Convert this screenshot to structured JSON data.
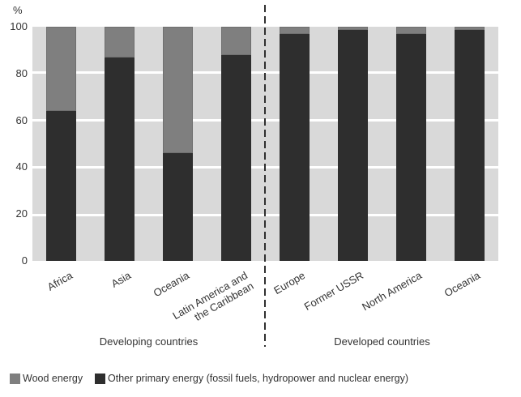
{
  "chart_data": {
    "type": "bar",
    "variant": "stacked-column-percent",
    "title": "",
    "ylabel": "%",
    "xlabel": "",
    "ylim": [
      0,
      100
    ],
    "yticks": [
      0,
      20,
      40,
      60,
      80,
      100
    ],
    "grid": "horizontal-white-on-gray-bands",
    "legend_position": "bottom",
    "groups": [
      {
        "label": "Developing countries",
        "categories": [
          "Africa",
          "Asia",
          "Oceania",
          "Latin America and\nthe Caribbean"
        ],
        "series": [
          {
            "name": "Wood energy",
            "values": [
              36,
              13,
              54,
              12
            ]
          },
          {
            "name": "Other primary energy (fossil fuels, hydropower and nuclear energy)",
            "values": [
              64,
              87,
              46,
              88
            ]
          }
        ]
      },
      {
        "label": "Developed countries",
        "categories": [
          "Europe",
          "Former USSR",
          "North America",
          "Oceania"
        ],
        "series": [
          {
            "name": "Wood energy",
            "values": [
              3,
              1.5,
              3,
              1.5
            ]
          },
          {
            "name": "Other primary energy (fossil fuels, hydropower and nuclear energy)",
            "values": [
              97,
              98.5,
              97,
              98.5
            ]
          }
        ]
      }
    ],
    "legend": [
      {
        "label": "Wood energy",
        "color": "#7f7f7f"
      },
      {
        "label": "Other primary energy (fossil fuels, hydropower and nuclear energy)",
        "color": "#2e2e2e"
      }
    ],
    "colors": {
      "wood_energy": "#7f7f7f",
      "other_primary_energy": "#2e2e2e",
      "plot_band": "#d9d9d9",
      "gridline": "#ffffff",
      "text": "#333333",
      "separator": "#2f2f2f"
    }
  }
}
